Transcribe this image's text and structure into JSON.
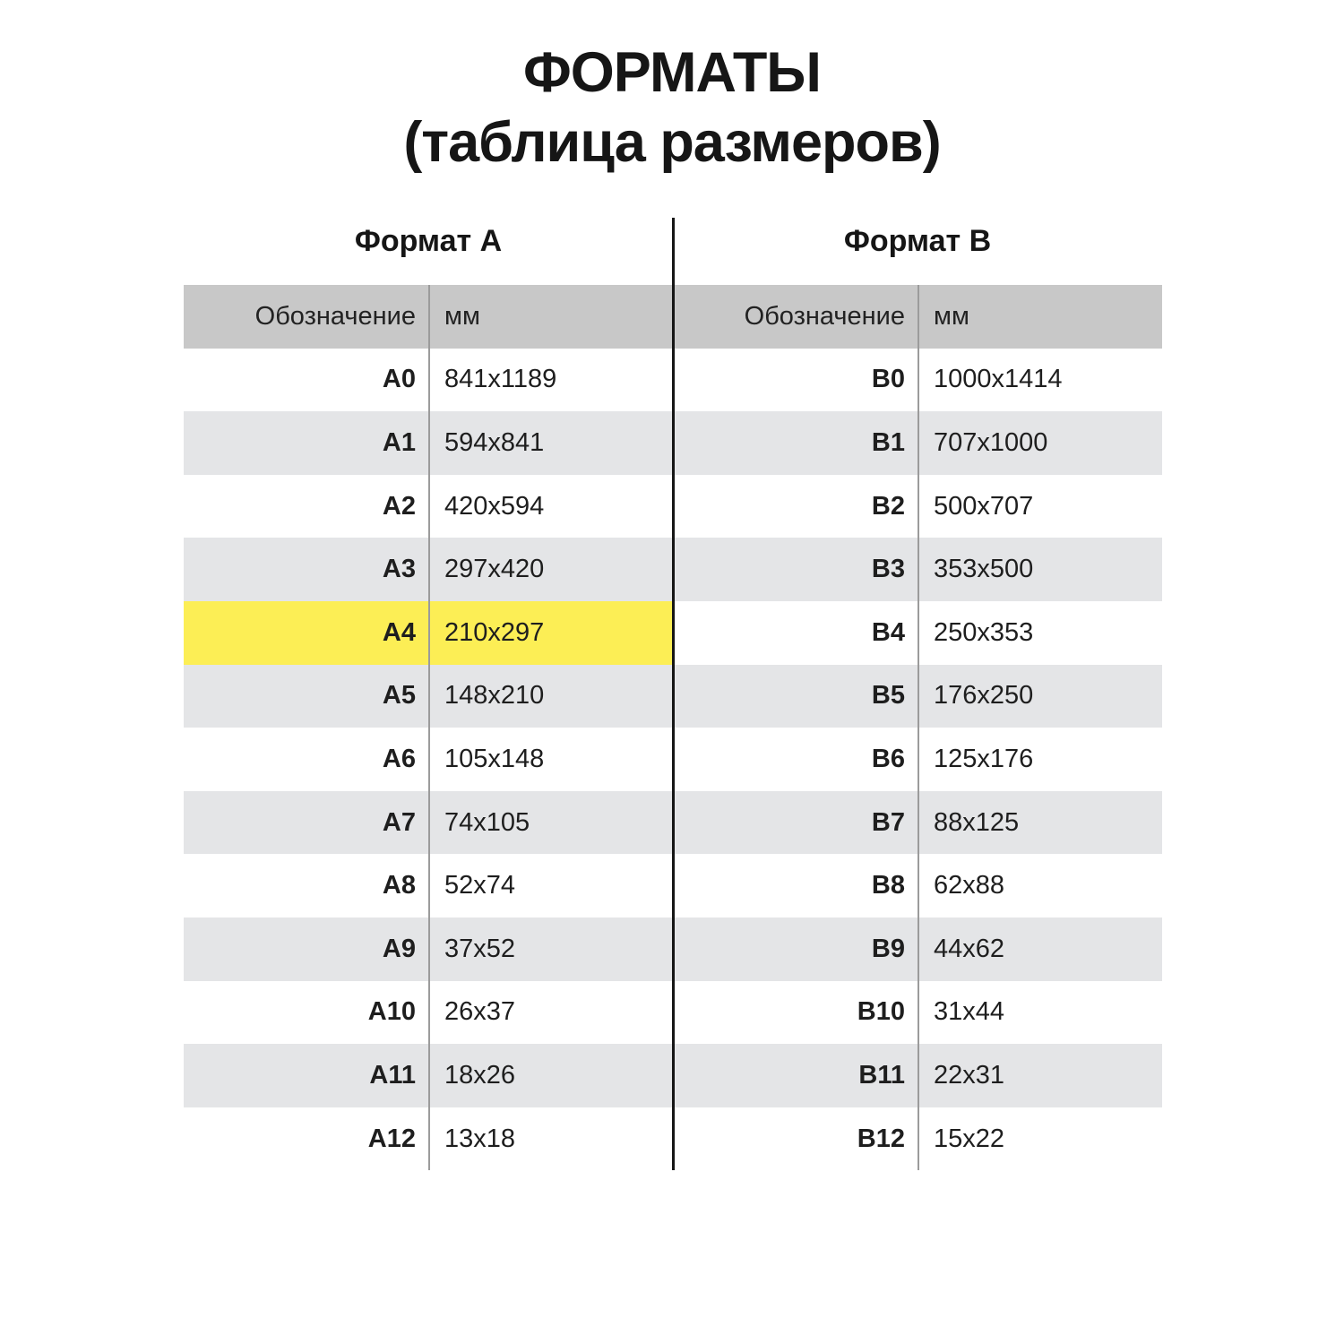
{
  "title": {
    "line1": "ФОРМАТЫ",
    "line2": "(таблица размеров)"
  },
  "sections": {
    "a_label": "Формат А",
    "b_label": "Формат B"
  },
  "table": {
    "designation_header": "Обозначение",
    "mm_header": "мм",
    "highlighted_row": "A4",
    "rows": [
      {
        "a_code": "A0",
        "a_mm": "841x1189",
        "b_code": "B0",
        "b_mm": "1000x1414"
      },
      {
        "a_code": "A1",
        "a_mm": "594x841",
        "b_code": "B1",
        "b_mm": "707x1000"
      },
      {
        "a_code": "A2",
        "a_mm": "420x594",
        "b_code": "B2",
        "b_mm": "500x707"
      },
      {
        "a_code": "A3",
        "a_mm": "297x420",
        "b_code": "B3",
        "b_mm": "353x500"
      },
      {
        "a_code": "A4",
        "a_mm": "210x297",
        "b_code": "B4",
        "b_mm": "250x353"
      },
      {
        "a_code": "A5",
        "a_mm": "148x210",
        "b_code": "B5",
        "b_mm": "176x250"
      },
      {
        "a_code": "A6",
        "a_mm": "105x148",
        "b_code": "B6",
        "b_mm": "125x176"
      },
      {
        "a_code": "A7",
        "a_mm": "74x105",
        "b_code": "B7",
        "b_mm": "88x125"
      },
      {
        "a_code": "A8",
        "a_mm": "52x74",
        "b_code": "B8",
        "b_mm": "62x88"
      },
      {
        "a_code": "A9",
        "a_mm": "37x52",
        "b_code": "B9",
        "b_mm": "44x62"
      },
      {
        "a_code": "A10",
        "a_mm": "26x37",
        "b_code": "B10",
        "b_mm": "31x44"
      },
      {
        "a_code": "A11",
        "a_mm": "18x26",
        "b_code": "B11",
        "b_mm": "22x31"
      },
      {
        "a_code": "A12",
        "a_mm": "13x18",
        "b_code": "B12",
        "b_mm": "15x22"
      }
    ]
  },
  "colors": {
    "header_row_bg": "#c8c8c8",
    "stripe_row_bg": "#e4e5e7",
    "highlight_yellow": "#fcee55",
    "column_divider": "#9b9b9b",
    "center_divider": "#161616",
    "text": "#1e1e1e"
  }
}
